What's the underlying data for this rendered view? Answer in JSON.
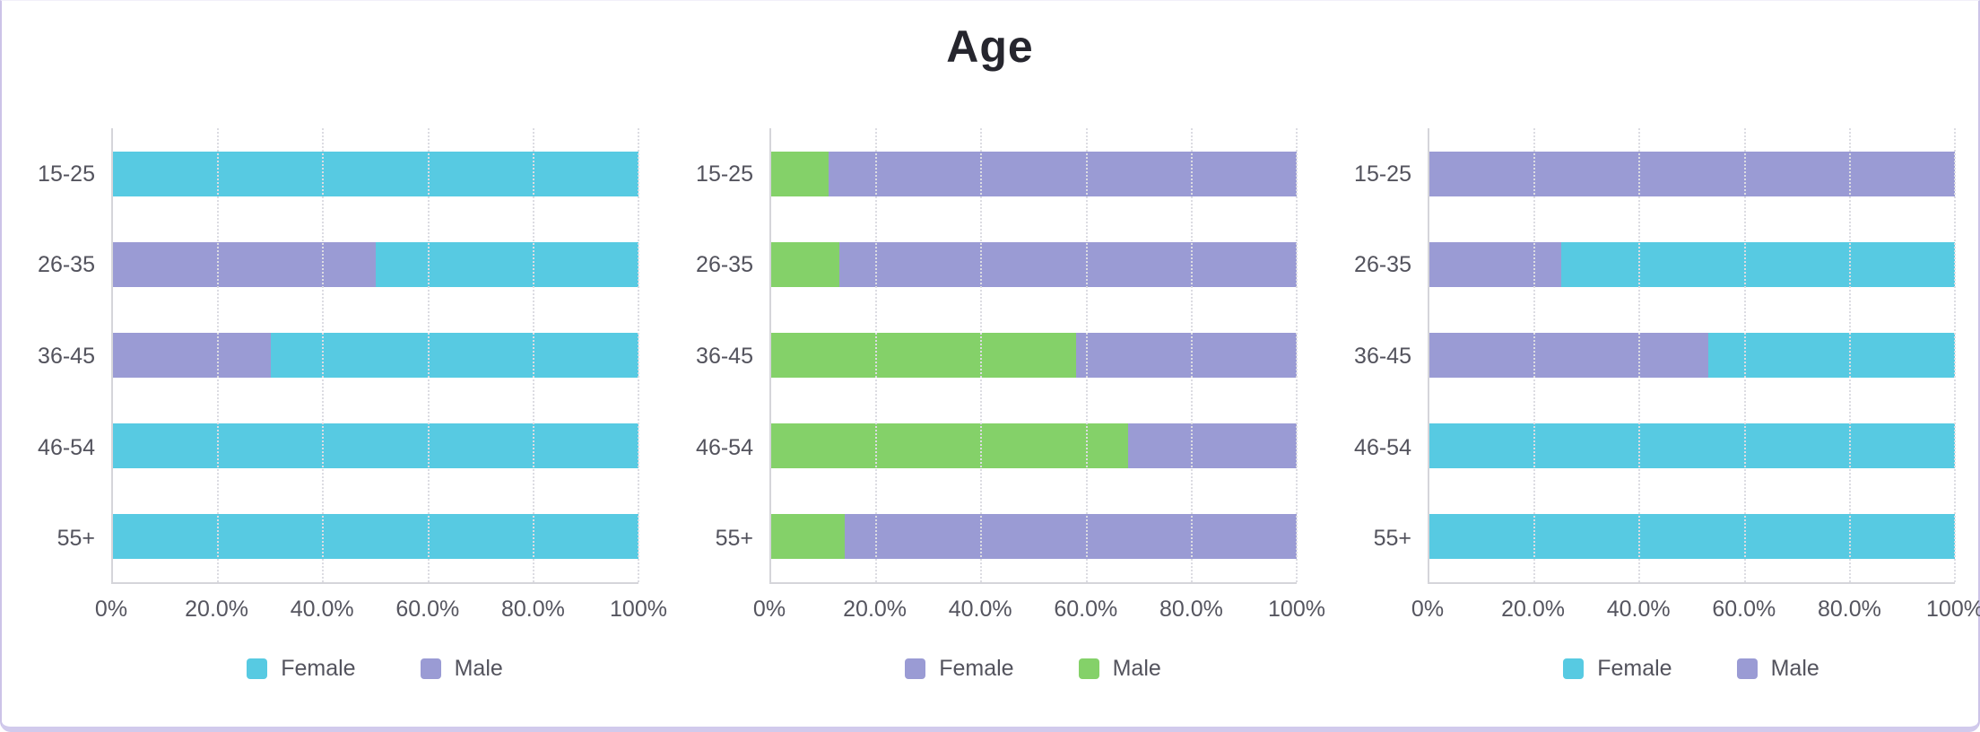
{
  "title": "Age",
  "frame": {
    "side_border_color": "#ccc3e8",
    "bottom_bar_color": "#d1caec",
    "background_color": "#ffffff",
    "title_color": "#26262e",
    "label_color": "#53535d"
  },
  "chart_data": [
    {
      "type": "bar",
      "orientation": "horizontal",
      "stacked": true,
      "title": "",
      "categories": [
        "15-25",
        "26-35",
        "36-45",
        "46-54",
        "55+"
      ],
      "series": [
        {
          "name": "Male",
          "color": "#9a9bd4",
          "values": [
            0,
            50,
            30,
            0,
            0
          ]
        },
        {
          "name": "Female",
          "color": "#57cae2",
          "values": [
            100,
            50,
            70,
            100,
            100
          ]
        }
      ],
      "legend": [
        {
          "label": "Female",
          "color": "#57cae2"
        },
        {
          "label": "Male",
          "color": "#9a9bd4"
        }
      ],
      "x_ticks": [
        "0%",
        "20.0%",
        "40.0%",
        "60.0%",
        "80.0%",
        "100%"
      ],
      "xlim": [
        0,
        100
      ],
      "grid": "dotted-vertical",
      "legend_position": "bottom"
    },
    {
      "type": "bar",
      "orientation": "horizontal",
      "stacked": true,
      "title": "",
      "categories": [
        "15-25",
        "26-35",
        "36-45",
        "46-54",
        "55+"
      ],
      "series": [
        {
          "name": "Male",
          "color": "#84d169",
          "values": [
            11,
            13,
            58,
            68,
            14
          ]
        },
        {
          "name": "Female",
          "color": "#9a9bd4",
          "values": [
            89,
            87,
            42,
            32,
            86
          ]
        }
      ],
      "legend": [
        {
          "label": "Female",
          "color": "#9a9bd4"
        },
        {
          "label": "Male",
          "color": "#84d169"
        }
      ],
      "x_ticks": [
        "0%",
        "20.0%",
        "40.0%",
        "60.0%",
        "80.0%",
        "100%"
      ],
      "xlim": [
        0,
        100
      ],
      "grid": "dotted-vertical",
      "legend_position": "bottom"
    },
    {
      "type": "bar",
      "orientation": "horizontal",
      "stacked": true,
      "title": "",
      "categories": [
        "15-25",
        "26-35",
        "36-45",
        "46-54",
        "55+"
      ],
      "series": [
        {
          "name": "Male",
          "color": "#9a9bd4",
          "values": [
            100,
            25,
            53,
            0,
            0
          ]
        },
        {
          "name": "Female",
          "color": "#57cae2",
          "values": [
            0,
            75,
            47,
            100,
            100
          ]
        }
      ],
      "legend": [
        {
          "label": "Female",
          "color": "#57cae2"
        },
        {
          "label": "Male",
          "color": "#9a9bd4"
        }
      ],
      "x_ticks": [
        "0%",
        "20.0%",
        "40.0%",
        "60.0%",
        "80.0%",
        "100%"
      ],
      "xlim": [
        0,
        100
      ],
      "grid": "dotted-vertical",
      "legend_position": "bottom"
    }
  ]
}
